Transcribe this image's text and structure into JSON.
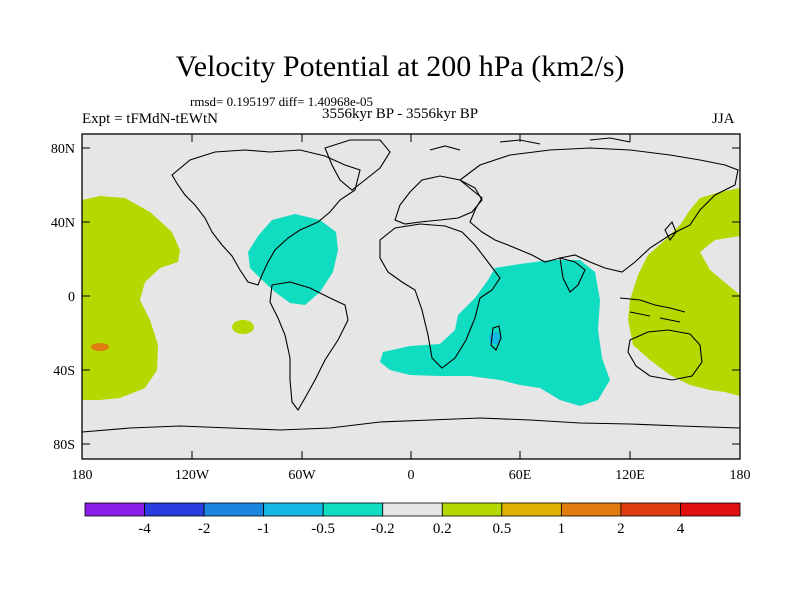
{
  "title": "Velocity Potential at 200 hPa (km2/s)",
  "stats": "rmsd= 0.195197 diff= 1.40968e-05",
  "experiment": "Expt = tFMdN-tEWtN",
  "period": "3556kyr BP - 3556kyr BP",
  "season": "JJA",
  "lat_labels": [
    "80N",
    "40N",
    "0",
    "40S",
    "80S"
  ],
  "lon_labels": [
    "180",
    "120W",
    "60W",
    "0",
    "60E",
    "120E",
    "180"
  ],
  "colorbar": {
    "levels": [
      "-4",
      "-2",
      "-1",
      "-0.5",
      "-0.2",
      "0.2",
      "0.5",
      "1",
      "2",
      "4"
    ],
    "colors": [
      "#8a1ee6",
      "#2b3ce0",
      "#1a86e0",
      "#16b8e6",
      "#0fdcc0",
      "#e6e6e6",
      "#b5d900",
      "#e0b000",
      "#e07c10",
      "#e03c10",
      "#e01010"
    ]
  },
  "fields": {
    "land_background": "#e6e6e6",
    "positive_small": "#b5d900",
    "negative_small": "#0fdcc0",
    "negative_mid": "#16b8e6",
    "positive_mid": "#e0b000",
    "positive_high": "#e07c10"
  }
}
